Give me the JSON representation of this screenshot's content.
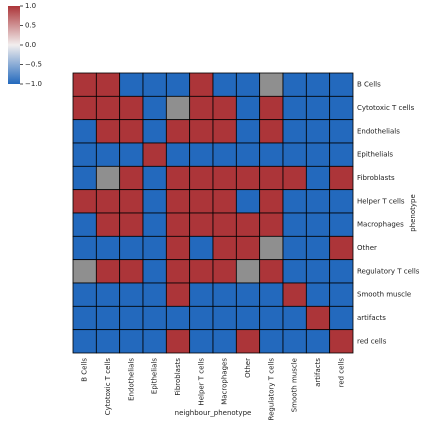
{
  "chart_data": {
    "type": "heatmap",
    "x_label": "neighbour_phenotype",
    "y_label": "phenotype",
    "columns": [
      "B Cells",
      "Cytotoxic T cells",
      "Endothelials",
      "Epithelials",
      "Fibroblasts",
      "Helper T cells",
      "Macrophages",
      "Other",
      "Regulatory T cells",
      "Smooth muscle",
      "artifacts",
      "red cells"
    ],
    "rows": [
      "B Cells",
      "Cytotoxic T cells",
      "Endothelials",
      "Epithelials",
      "Fibroblasts",
      "Helper T cells",
      "Macrophages",
      "Other",
      "Regulatory T cells",
      "Smooth muscle",
      "artifacts",
      "red cells"
    ],
    "values": [
      [
        1,
        1,
        -1,
        -1,
        -1,
        1,
        -1,
        -1,
        null,
        -1,
        -1,
        -1
      ],
      [
        1,
        1,
        1,
        -1,
        null,
        1,
        1,
        -1,
        1,
        -1,
        -1,
        -1
      ],
      [
        -1,
        1,
        1,
        -1,
        1,
        1,
        1,
        -1,
        1,
        -1,
        -1,
        -1
      ],
      [
        -1,
        -1,
        -1,
        1,
        -1,
        -1,
        -1,
        -1,
        -1,
        -1,
        -1,
        -1
      ],
      [
        -1,
        null,
        1,
        -1,
        1,
        1,
        1,
        1,
        1,
        1,
        -1,
        1
      ],
      [
        1,
        1,
        1,
        -1,
        1,
        1,
        1,
        -1,
        1,
        -1,
        -1,
        -1
      ],
      [
        -1,
        1,
        1,
        -1,
        1,
        1,
        1,
        1,
        1,
        -1,
        -1,
        -1
      ],
      [
        -1,
        -1,
        -1,
        -1,
        1,
        -1,
        1,
        1,
        null,
        -1,
        -1,
        1
      ],
      [
        null,
        1,
        1,
        -1,
        1,
        1,
        1,
        null,
        1,
        -1,
        -1,
        -1
      ],
      [
        -1,
        -1,
        -1,
        -1,
        1,
        -1,
        -1,
        -1,
        -1,
        1,
        -1,
        -1
      ],
      [
        -1,
        -1,
        -1,
        -1,
        -1,
        -1,
        -1,
        -1,
        -1,
        -1,
        1,
        -1
      ],
      [
        -1,
        -1,
        -1,
        -1,
        1,
        -1,
        -1,
        1,
        -1,
        -1,
        -1,
        1
      ]
    ],
    "colorscale": [
      "#2369bd",
      "#f2eeee",
      "#ac3539"
    ],
    "nan_color": "#8f8f8f",
    "clim": [
      -1,
      1
    ],
    "cticks": [
      {
        "value": 1,
        "label": "1.0"
      },
      {
        "value": 0.5,
        "label": "0.5"
      },
      {
        "value": 0,
        "label": "0.0"
      },
      {
        "value": -0.5,
        "label": "−0.5"
      },
      {
        "value": -1,
        "label": "−1.0"
      }
    ]
  }
}
